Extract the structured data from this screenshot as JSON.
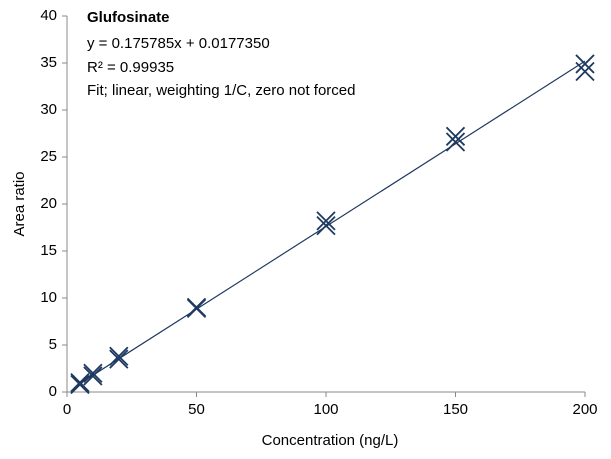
{
  "chart_data": {
    "type": "scatter",
    "annotations": [
      "Glufosinate",
      "y = 0.175785x + 0.0177350",
      "R² = 0.99935",
      "Fit; linear, weighting 1/C, zero not forced"
    ],
    "x_label": "Concentration  (ng/L)",
    "y_label": "Area ratio",
    "x": [
      5,
      5,
      10,
      10,
      20,
      20,
      50,
      50,
      100,
      100,
      150,
      150,
      200,
      200
    ],
    "values": [
      1.0,
      0.8,
      2.0,
      1.7,
      3.8,
      3.5,
      9.0,
      8.9,
      18.2,
      17.7,
      27.2,
      26.6,
      34.9,
      34.1
    ],
    "color": "#1f3a60",
    "fit_line": {
      "x": [
        5,
        200
      ],
      "values": [
        0.9,
        35.2
      ]
    },
    "xlim": [
      0,
      200
    ],
    "xticks": [
      0,
      50,
      100,
      150,
      200
    ],
    "ylim": [
      0,
      40
    ],
    "yticks": [
      0,
      5,
      10,
      15,
      20,
      25,
      30,
      35,
      40
    ],
    "grid": false
  }
}
